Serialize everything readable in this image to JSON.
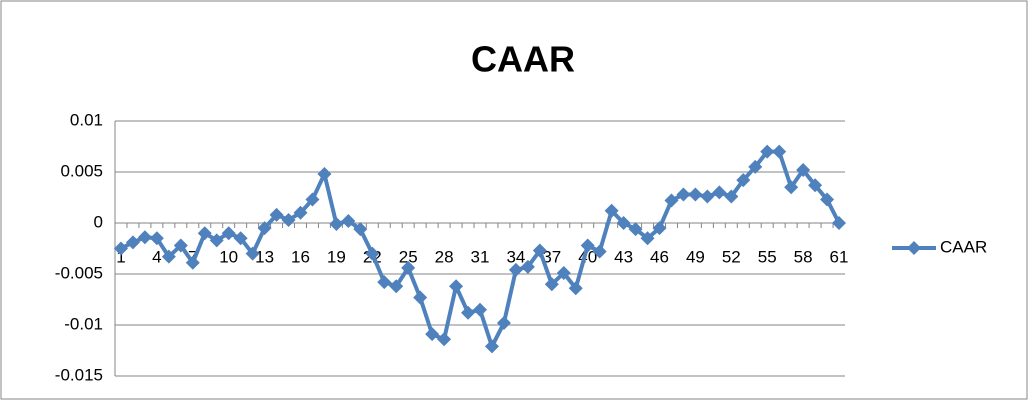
{
  "chart_data": {
    "type": "line",
    "title": "CAAR",
    "categories": [
      1,
      null,
      null,
      4,
      null,
      null,
      7,
      null,
      null,
      10,
      null,
      null,
      13,
      null,
      null,
      16,
      null,
      null,
      19,
      null,
      null,
      22,
      null,
      null,
      25,
      null,
      null,
      28,
      null,
      null,
      31,
      null,
      null,
      34,
      null,
      null,
      37,
      null,
      null,
      40,
      null,
      null,
      43,
      null,
      null,
      46,
      null,
      null,
      49,
      null,
      null,
      52,
      null,
      null,
      55,
      null,
      null,
      58,
      null,
      null,
      61
    ],
    "series": [
      {
        "name": "CAAR",
        "color": "#4f81bd",
        "values": [
          -0.0025,
          -0.0019,
          -0.0014,
          -0.0015,
          -0.0033,
          -0.0022,
          -0.0039,
          -0.001,
          -0.0017,
          -0.001,
          -0.0015,
          -0.003,
          -0.0005,
          0.0008,
          0.0003,
          0.001,
          0.0023,
          0.0048,
          -0.0001,
          0.0002,
          -0.0006,
          -0.003,
          -0.0058,
          -0.0062,
          -0.0044,
          -0.0073,
          -0.0109,
          -0.0114,
          -0.0062,
          -0.0088,
          -0.0085,
          -0.0121,
          -0.0098,
          -0.0046,
          -0.0043,
          -0.0027,
          -0.006,
          -0.0049,
          -0.0064,
          -0.0022,
          -0.0028,
          0.0012,
          0,
          -0.0006,
          -0.0015,
          -0.0005,
          0.0022,
          0.0028,
          0.0028,
          0.0026,
          0.003,
          0.0026,
          0.0042,
          0.0055,
          0.007,
          0.007,
          0.0035,
          0.0052,
          0.0037,
          0.0023,
          0
        ]
      }
    ],
    "ylim": [
      -0.015,
      0.01
    ],
    "yticks": [
      -0.015,
      -0.01,
      -0.005,
      0,
      0.005,
      0.01
    ],
    "grid": true,
    "legend": "right"
  }
}
